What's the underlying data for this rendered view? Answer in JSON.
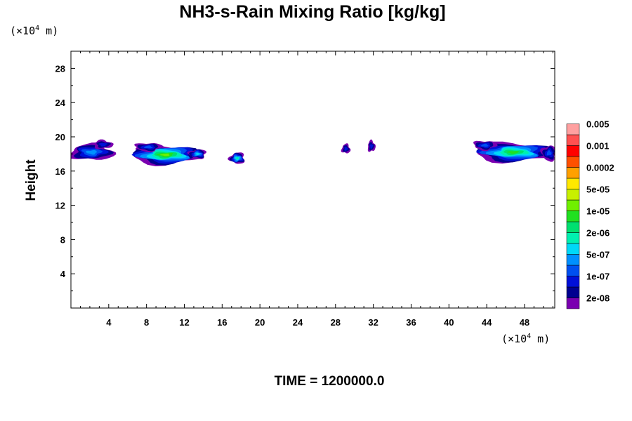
{
  "chart_data": {
    "type": "heatmap",
    "title": "NH3-s-Rain Mixing Ratio [kg/kg]",
    "ylabel": "Height",
    "x_unit": {
      "prefix": "(×10",
      "exp": "4",
      "suffix": " m)"
    },
    "y_unit": {
      "prefix": "(×10",
      "exp": "4",
      "suffix": " m)"
    },
    "xlim": [
      0,
      51.2
    ],
    "ylim": [
      0,
      30
    ],
    "x_ticks": [
      4,
      8,
      12,
      16,
      20,
      24,
      28,
      32,
      36,
      40,
      44,
      48
    ],
    "y_ticks": [
      4,
      8,
      12,
      16,
      20,
      24,
      28
    ],
    "time_label": "TIME = 1200000.0",
    "colorbar": {
      "colors": [
        "#7a00b0",
        "#000090",
        "#0010d8",
        "#0050f0",
        "#0090ff",
        "#00d8f8",
        "#00f0b0",
        "#00e070",
        "#20e020",
        "#70f000",
        "#c8f000",
        "#ffe800",
        "#ffa000",
        "#ff5000",
        "#ff0000",
        "#ff5050",
        "#ffa0a0"
      ],
      "labels": [
        "2e-08",
        "1e-07",
        "5e-07",
        "2e-06",
        "1e-05",
        "5e-05",
        "0.0002",
        "0.001",
        "0.005"
      ]
    },
    "blobs": [
      {
        "x": 2.2,
        "y": 18.2,
        "rx": 2.3,
        "ry": 0.95,
        "max_level": 4
      },
      {
        "x": 3.4,
        "y": 19.1,
        "rx": 1.0,
        "ry": 0.5,
        "max_level": 2
      },
      {
        "x": 10.0,
        "y": 17.9,
        "rx": 3.7,
        "ry": 1.1,
        "max_level": 9
      },
      {
        "x": 8.2,
        "y": 18.8,
        "rx": 1.4,
        "ry": 0.5,
        "max_level": 3
      },
      {
        "x": 13.4,
        "y": 18.0,
        "rx": 0.9,
        "ry": 0.55,
        "max_level": 5
      },
      {
        "x": 17.6,
        "y": 17.5,
        "rx": 0.8,
        "ry": 0.65,
        "max_level": 6
      },
      {
        "x": 29.1,
        "y": 18.6,
        "rx": 0.45,
        "ry": 0.55,
        "max_level": 2
      },
      {
        "x": 31.8,
        "y": 18.9,
        "rx": 0.4,
        "ry": 0.65,
        "max_level": 2
      },
      {
        "x": 46.8,
        "y": 18.2,
        "rx": 4.2,
        "ry": 1.1,
        "max_level": 8
      },
      {
        "x": 43.8,
        "y": 19.0,
        "rx": 1.2,
        "ry": 0.55,
        "max_level": 3
      },
      {
        "x": 50.6,
        "y": 18.1,
        "rx": 0.8,
        "ry": 0.9,
        "max_level": 3
      }
    ]
  }
}
